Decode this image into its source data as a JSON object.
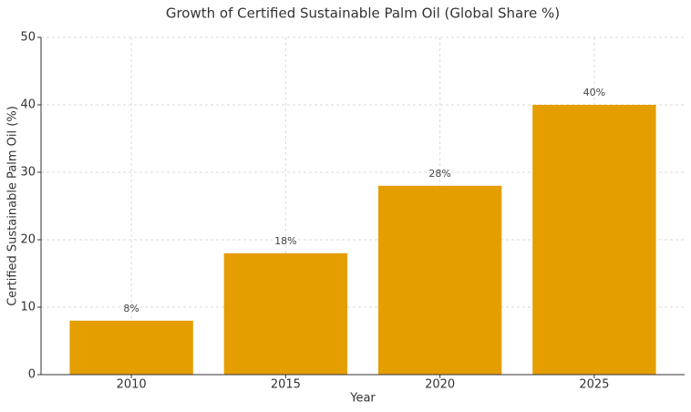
{
  "chart_data": {
    "type": "bar",
    "title": "Growth of Certified Sustainable Palm Oil (Global Share %)",
    "x_label": "Year",
    "y_label": "Certified Sustainable Palm Oil (%)",
    "categories": [
      "2010",
      "2015",
      "2020",
      "2025"
    ],
    "values": [
      8,
      18,
      28,
      40
    ],
    "value_labels": [
      "8%",
      "18%",
      "28%",
      "40%"
    ],
    "color": "#e59e00",
    "ylim": [
      0,
      50
    ],
    "yticks": [
      0,
      10,
      20,
      30,
      40,
      50
    ],
    "grid": true
  }
}
